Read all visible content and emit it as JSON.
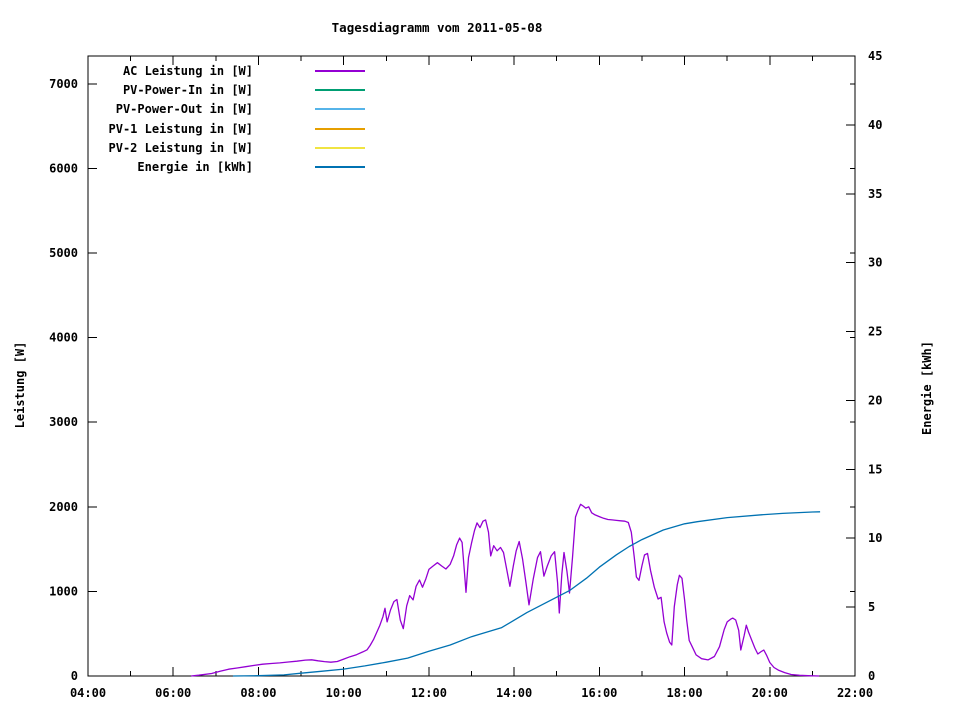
{
  "title": "Tagesdiagramm vom 2011-05-08",
  "chart_data": {
    "type": "line",
    "title": "Tagesdiagramm vom 2011-05-08",
    "xlabel": "",
    "ylabel_left": "Leistung [W]",
    "ylabel_right": "Energie [kWh]",
    "x_unit": "time_of_day_hours",
    "x_range": [
      4,
      22
    ],
    "x_major_ticks": [
      "04:00",
      "06:00",
      "08:00",
      "10:00",
      "12:00",
      "14:00",
      "16:00",
      "18:00",
      "20:00",
      "22:00"
    ],
    "x_minor_step_hours": 1,
    "y_left_range": [
      0,
      7330
    ],
    "y_left_ticks": [
      0,
      1000,
      2000,
      3000,
      4000,
      5000,
      6000,
      7000
    ],
    "y_right_range": [
      0,
      45
    ],
    "y_right_ticks": [
      0,
      5,
      10,
      15,
      20,
      25,
      30,
      35,
      40,
      45
    ],
    "grid": false,
    "legend_position": "top-left-inside",
    "series": [
      {
        "name": "AC Leistung in [W]",
        "color": "#9400D3",
        "axis": "left",
        "points": [
          [
            6.42,
            0
          ],
          [
            6.6,
            10
          ],
          [
            6.9,
            30
          ],
          [
            7.1,
            55
          ],
          [
            7.3,
            80
          ],
          [
            7.5,
            95
          ],
          [
            7.7,
            110
          ],
          [
            7.9,
            125
          ],
          [
            8.1,
            140
          ],
          [
            8.3,
            148
          ],
          [
            8.5,
            155
          ],
          [
            8.7,
            165
          ],
          [
            8.9,
            175
          ],
          [
            9.1,
            188
          ],
          [
            9.25,
            192
          ],
          [
            9.4,
            180
          ],
          [
            9.55,
            170
          ],
          [
            9.7,
            163
          ],
          [
            9.85,
            172
          ],
          [
            10.0,
            200
          ],
          [
            10.15,
            228
          ],
          [
            10.3,
            252
          ],
          [
            10.45,
            285
          ],
          [
            10.55,
            310
          ],
          [
            10.62,
            360
          ],
          [
            10.7,
            430
          ],
          [
            10.78,
            520
          ],
          [
            10.85,
            600
          ],
          [
            10.92,
            700
          ],
          [
            10.97,
            800
          ],
          [
            11.02,
            640
          ],
          [
            11.1,
            780
          ],
          [
            11.18,
            880
          ],
          [
            11.25,
            905
          ],
          [
            11.33,
            660
          ],
          [
            11.4,
            560
          ],
          [
            11.48,
            830
          ],
          [
            11.55,
            950
          ],
          [
            11.63,
            900
          ],
          [
            11.7,
            1060
          ],
          [
            11.78,
            1135
          ],
          [
            11.85,
            1050
          ],
          [
            11.93,
            1150
          ],
          [
            12.0,
            1260
          ],
          [
            12.1,
            1300
          ],
          [
            12.2,
            1340
          ],
          [
            12.3,
            1300
          ],
          [
            12.4,
            1265
          ],
          [
            12.5,
            1320
          ],
          [
            12.58,
            1420
          ],
          [
            12.65,
            1550
          ],
          [
            12.72,
            1630
          ],
          [
            12.78,
            1580
          ],
          [
            12.83,
            1250
          ],
          [
            12.87,
            990
          ],
          [
            12.93,
            1400
          ],
          [
            13.0,
            1570
          ],
          [
            13.07,
            1720
          ],
          [
            13.13,
            1810
          ],
          [
            13.2,
            1755
          ],
          [
            13.27,
            1830
          ],
          [
            13.33,
            1845
          ],
          [
            13.4,
            1700
          ],
          [
            13.45,
            1420
          ],
          [
            13.52,
            1540
          ],
          [
            13.6,
            1480
          ],
          [
            13.68,
            1520
          ],
          [
            13.75,
            1460
          ],
          [
            13.82,
            1280
          ],
          [
            13.9,
            1060
          ],
          [
            13.98,
            1300
          ],
          [
            14.05,
            1480
          ],
          [
            14.12,
            1590
          ],
          [
            14.2,
            1380
          ],
          [
            14.28,
            1100
          ],
          [
            14.35,
            840
          ],
          [
            14.45,
            1150
          ],
          [
            14.55,
            1400
          ],
          [
            14.62,
            1470
          ],
          [
            14.7,
            1180
          ],
          [
            14.78,
            1300
          ],
          [
            14.87,
            1420
          ],
          [
            14.95,
            1470
          ],
          [
            15.02,
            1100
          ],
          [
            15.06,
            745
          ],
          [
            15.12,
            1200
          ],
          [
            15.17,
            1460
          ],
          [
            15.24,
            1240
          ],
          [
            15.3,
            980
          ],
          [
            15.37,
            1400
          ],
          [
            15.44,
            1880
          ],
          [
            15.5,
            1960
          ],
          [
            15.56,
            2030
          ],
          [
            15.62,
            2010
          ],
          [
            15.68,
            1985
          ],
          [
            15.75,
            2000
          ],
          [
            15.82,
            1930
          ],
          [
            15.9,
            1905
          ],
          [
            16.0,
            1885
          ],
          [
            16.1,
            1865
          ],
          [
            16.2,
            1850
          ],
          [
            16.3,
            1845
          ],
          [
            16.4,
            1840
          ],
          [
            16.5,
            1835
          ],
          [
            16.6,
            1830
          ],
          [
            16.68,
            1815
          ],
          [
            16.75,
            1700
          ],
          [
            16.82,
            1400
          ],
          [
            16.87,
            1170
          ],
          [
            16.93,
            1130
          ],
          [
            17.0,
            1300
          ],
          [
            17.06,
            1430
          ],
          [
            17.13,
            1450
          ],
          [
            17.2,
            1250
          ],
          [
            17.29,
            1050
          ],
          [
            17.38,
            910
          ],
          [
            17.45,
            930
          ],
          [
            17.52,
            640
          ],
          [
            17.58,
            508
          ],
          [
            17.65,
            400
          ],
          [
            17.7,
            366
          ],
          [
            17.76,
            820
          ],
          [
            17.83,
            1080
          ],
          [
            17.88,
            1190
          ],
          [
            17.94,
            1155
          ],
          [
            18.0,
            900
          ],
          [
            18.05,
            660
          ],
          [
            18.11,
            420
          ],
          [
            18.18,
            346
          ],
          [
            18.27,
            250
          ],
          [
            18.4,
            205
          ],
          [
            18.55,
            190
          ],
          [
            18.7,
            230
          ],
          [
            18.82,
            346
          ],
          [
            18.93,
            550
          ],
          [
            19.0,
            640
          ],
          [
            19.08,
            672
          ],
          [
            19.13,
            685
          ],
          [
            19.2,
            662
          ],
          [
            19.27,
            540
          ],
          [
            19.32,
            307
          ],
          [
            19.4,
            480
          ],
          [
            19.45,
            600
          ],
          [
            19.5,
            520
          ],
          [
            19.57,
            430
          ],
          [
            19.65,
            330
          ],
          [
            19.72,
            260
          ],
          [
            19.8,
            290
          ],
          [
            19.86,
            307
          ],
          [
            19.92,
            250
          ],
          [
            20.0,
            160
          ],
          [
            20.1,
            100
          ],
          [
            20.2,
            70
          ],
          [
            20.35,
            40
          ],
          [
            20.5,
            18
          ],
          [
            20.7,
            8
          ],
          [
            20.9,
            3
          ],
          [
            21.16,
            0
          ]
        ]
      },
      {
        "name": "PV-Power-In in [W]",
        "color": "#009E73",
        "axis": "left",
        "points": []
      },
      {
        "name": "PV-Power-Out in [W]",
        "color": "#56B4E9",
        "axis": "left",
        "points": []
      },
      {
        "name": "PV-1 Leistung in [W]",
        "color": "#E69F00",
        "axis": "left",
        "points": []
      },
      {
        "name": "PV-2 Leistung in [W]",
        "color": "#F0E442",
        "axis": "left",
        "points": []
      },
      {
        "name": "Energie in [kWh]",
        "color": "#0072B2",
        "axis": "right",
        "points": [
          [
            7.4,
            0
          ],
          [
            8.0,
            0.02
          ],
          [
            8.6,
            0.08
          ],
          [
            9.0,
            0.2
          ],
          [
            9.5,
            0.35
          ],
          [
            10.0,
            0.5
          ],
          [
            10.5,
            0.73
          ],
          [
            11.0,
            1.0
          ],
          [
            11.5,
            1.3
          ],
          [
            12.0,
            1.8
          ],
          [
            12.5,
            2.25
          ],
          [
            13.0,
            2.85
          ],
          [
            13.7,
            3.5
          ],
          [
            14.3,
            4.6
          ],
          [
            14.8,
            5.4
          ],
          [
            15.3,
            6.2
          ],
          [
            15.7,
            7.1
          ],
          [
            16.0,
            7.9
          ],
          [
            16.4,
            8.8
          ],
          [
            16.7,
            9.4
          ],
          [
            17.0,
            9.9
          ],
          [
            17.5,
            10.6
          ],
          [
            18.0,
            11.05
          ],
          [
            18.3,
            11.2
          ],
          [
            19.0,
            11.5
          ],
          [
            19.8,
            11.7
          ],
          [
            20.3,
            11.8
          ],
          [
            21.0,
            11.9
          ],
          [
            21.18,
            11.92
          ]
        ]
      }
    ]
  }
}
